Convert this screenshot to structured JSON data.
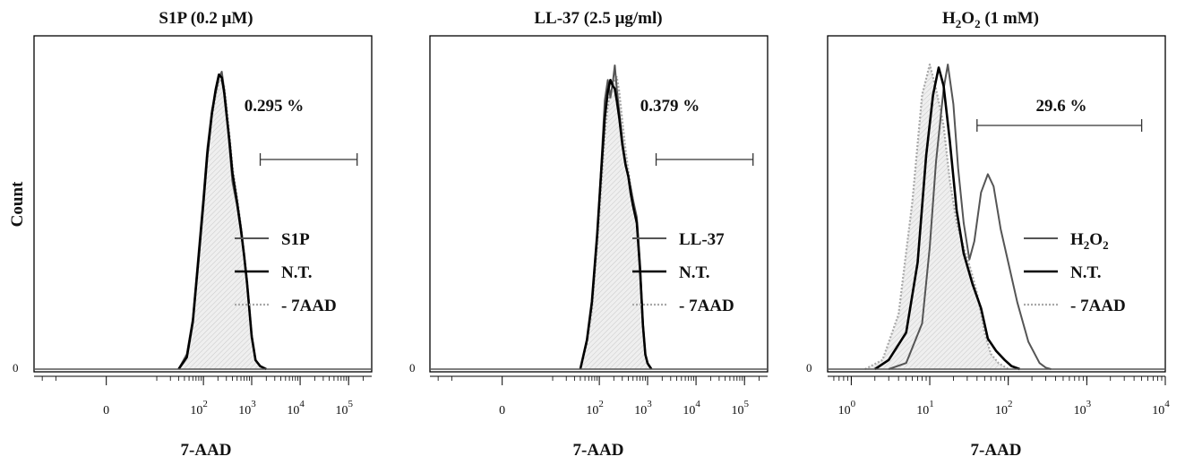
{
  "chart_data": [
    {
      "type": "area",
      "title": "S1P (0.2 μM)",
      "xlabel": "7-AAD",
      "ylabel": "Count",
      "x_scale": "biexponential",
      "xlim": [
        -30,
        300000
      ],
      "y_tick": "0",
      "x_ticks": [
        {
          "value": 0,
          "base": "0",
          "exp": ""
        },
        {
          "value": 100,
          "base": "10",
          "exp": "2"
        },
        {
          "value": 1000,
          "base": "10",
          "exp": "3"
        },
        {
          "value": 10000,
          "base": "10",
          "exp": "4"
        },
        {
          "value": 100000,
          "base": "10",
          "exp": "5"
        }
      ],
      "gate": {
        "percent": "0.295 %",
        "from": 1500,
        "to": 150000
      },
      "legend": [
        {
          "label": "S1P",
          "sub": "",
          "color": "#555555",
          "style": "solid"
        },
        {
          "label": "N.T.",
          "sub": "",
          "color": "#000000",
          "style": "solid-thick"
        },
        {
          "label": "- 7AAD",
          "sub": "",
          "color": "#aaaaaa",
          "style": "dotted"
        }
      ],
      "series": [
        {
          "name": "S1P",
          "x": [
            30,
            45,
            60,
            80,
            100,
            120,
            150,
            180,
            210,
            240,
            270,
            300,
            350,
            400,
            500,
            600,
            700,
            800,
            1000,
            1200,
            1500,
            2000
          ],
          "y": [
            0,
            0.05,
            0.17,
            0.4,
            0.58,
            0.74,
            0.87,
            0.93,
            0.98,
            1.0,
            0.94,
            0.87,
            0.74,
            0.63,
            0.55,
            0.46,
            0.38,
            0.29,
            0.11,
            0.03,
            0.01,
            0
          ]
        },
        {
          "name": "N.T.",
          "x": [
            30,
            45,
            60,
            80,
            100,
            120,
            150,
            180,
            210,
            240,
            270,
            300,
            350,
            400,
            500,
            600,
            700,
            800,
            1000,
            1200,
            1500,
            2000
          ],
          "y": [
            0,
            0.04,
            0.16,
            0.38,
            0.56,
            0.72,
            0.86,
            0.94,
            0.99,
            0.98,
            0.93,
            0.86,
            0.76,
            0.66,
            0.56,
            0.47,
            0.38,
            0.29,
            0.11,
            0.03,
            0.01,
            0
          ]
        },
        {
          "name": "- 7AAD",
          "x": [
            30,
            45,
            60,
            80,
            100,
            120,
            150,
            180,
            210,
            240,
            270,
            300,
            350,
            400,
            500,
            600,
            700,
            800,
            1000,
            1200,
            1500,
            2000
          ],
          "y": [
            0,
            0.05,
            0.16,
            0.37,
            0.55,
            0.71,
            0.85,
            0.92,
            0.97,
            0.97,
            0.95,
            0.89,
            0.78,
            0.68,
            0.58,
            0.48,
            0.39,
            0.3,
            0.12,
            0.03,
            0.01,
            0
          ]
        }
      ]
    },
    {
      "type": "area",
      "title": "LL-37 (2.5 μg/ml)",
      "xlabel": "7-AAD",
      "ylabel": "",
      "x_scale": "biexponential",
      "xlim": [
        -30,
        300000
      ],
      "y_tick": "0",
      "x_ticks": [
        {
          "value": 0,
          "base": "0",
          "exp": ""
        },
        {
          "value": 100,
          "base": "10",
          "exp": "2"
        },
        {
          "value": 1000,
          "base": "10",
          "exp": "3"
        },
        {
          "value": 10000,
          "base": "10",
          "exp": "4"
        },
        {
          "value": 100000,
          "base": "10",
          "exp": "5"
        }
      ],
      "gate": {
        "percent": "0.379 %",
        "from": 1500,
        "to": 150000
      },
      "legend": [
        {
          "label": "LL-37",
          "sub": "",
          "color": "#555555",
          "style": "solid"
        },
        {
          "label": "N.T.",
          "sub": "",
          "color": "#000000",
          "style": "solid-thick"
        },
        {
          "label": "- 7AAD",
          "sub": "",
          "color": "#aaaaaa",
          "style": "dotted"
        }
      ],
      "series": [
        {
          "name": "LL-37",
          "x": [
            40,
            55,
            70,
            90,
            110,
            130,
            150,
            170,
            190,
            210,
            230,
            260,
            300,
            350,
            400,
            450,
            500,
            600,
            700,
            800,
            900,
            1000,
            1200
          ],
          "y": [
            0,
            0.1,
            0.22,
            0.45,
            0.7,
            0.92,
            0.99,
            0.93,
            0.98,
            1.04,
            0.96,
            0.88,
            0.78,
            0.7,
            0.66,
            0.62,
            0.58,
            0.52,
            0.36,
            0.16,
            0.05,
            0.02,
            0
          ]
        },
        {
          "name": "N.T.",
          "x": [
            40,
            55,
            70,
            90,
            110,
            130,
            150,
            170,
            190,
            210,
            230,
            260,
            300,
            350,
            400,
            450,
            500,
            600,
            700,
            800,
            900,
            1000,
            1200
          ],
          "y": [
            0,
            0.1,
            0.23,
            0.46,
            0.68,
            0.86,
            0.95,
            0.99,
            0.97,
            0.96,
            0.92,
            0.86,
            0.77,
            0.7,
            0.66,
            0.6,
            0.56,
            0.5,
            0.34,
            0.15,
            0.05,
            0.02,
            0
          ]
        },
        {
          "name": "- 7AAD",
          "x": [
            40,
            55,
            70,
            90,
            110,
            130,
            150,
            170,
            190,
            210,
            230,
            260,
            300,
            350,
            400,
            450,
            500,
            600,
            700,
            800,
            900,
            1000,
            1200
          ],
          "y": [
            0,
            0.09,
            0.2,
            0.42,
            0.63,
            0.8,
            0.9,
            0.95,
            0.97,
            0.99,
            1.0,
            0.95,
            0.85,
            0.75,
            0.68,
            0.62,
            0.58,
            0.5,
            0.34,
            0.15,
            0.05,
            0.02,
            0
          ]
        }
      ]
    },
    {
      "type": "area",
      "title": "H₂O₂ (1 mM)",
      "xlabel": "7-AAD",
      "ylabel": "",
      "x_scale": "log",
      "xlim": [
        0.5,
        10000
      ],
      "y_tick": "0",
      "x_ticks": [
        {
          "value": 1,
          "base": "10",
          "exp": "0"
        },
        {
          "value": 10,
          "base": "10",
          "exp": "1"
        },
        {
          "value": 100,
          "base": "10",
          "exp": "2"
        },
        {
          "value": 1000,
          "base": "10",
          "exp": "3"
        },
        {
          "value": 10000,
          "base": "10",
          "exp": "4"
        }
      ],
      "gate": {
        "percent": "29.6 %",
        "from": 40,
        "to": 5000
      },
      "legend": [
        {
          "label": "H",
          "sub": "2",
          "label2": "O",
          "sub2": "2",
          "color": "#555555",
          "style": "solid"
        },
        {
          "label": "N.T.",
          "sub": "",
          "color": "#000000",
          "style": "solid-thick"
        },
        {
          "label": "- 7AAD",
          "sub": "",
          "color": "#aaaaaa",
          "style": "dotted"
        }
      ],
      "series": [
        {
          "name": "H₂O₂",
          "x": [
            3,
            5,
            8,
            10,
            12,
            15,
            17,
            20,
            23,
            27,
            32,
            37,
            45,
            55,
            65,
            80,
            100,
            130,
            180,
            250,
            300,
            350
          ],
          "y": [
            0,
            0.02,
            0.15,
            0.4,
            0.68,
            0.92,
            1.0,
            0.87,
            0.66,
            0.48,
            0.36,
            0.42,
            0.58,
            0.64,
            0.6,
            0.46,
            0.35,
            0.22,
            0.09,
            0.02,
            0.005,
            0
          ]
        },
        {
          "name": "N.T.",
          "x": [
            2,
            3,
            5,
            7,
            9,
            11,
            13,
            15,
            18,
            22,
            27,
            35,
            45,
            55,
            70,
            90,
            110,
            140
          ],
          "y": [
            0,
            0.03,
            0.12,
            0.35,
            0.7,
            0.9,
            0.99,
            0.93,
            0.75,
            0.52,
            0.38,
            0.28,
            0.2,
            0.1,
            0.06,
            0.03,
            0.01,
            0
          ]
        },
        {
          "name": "- 7AAD",
          "x": [
            1.5,
            2.5,
            4,
            6,
            8,
            10,
            12,
            15,
            18,
            22,
            27,
            33,
            40,
            50,
            60,
            75,
            100
          ],
          "y": [
            0,
            0.03,
            0.18,
            0.55,
            0.9,
            1.0,
            0.92,
            0.8,
            0.62,
            0.48,
            0.4,
            0.33,
            0.25,
            0.12,
            0.05,
            0.02,
            0
          ]
        }
      ]
    }
  ]
}
